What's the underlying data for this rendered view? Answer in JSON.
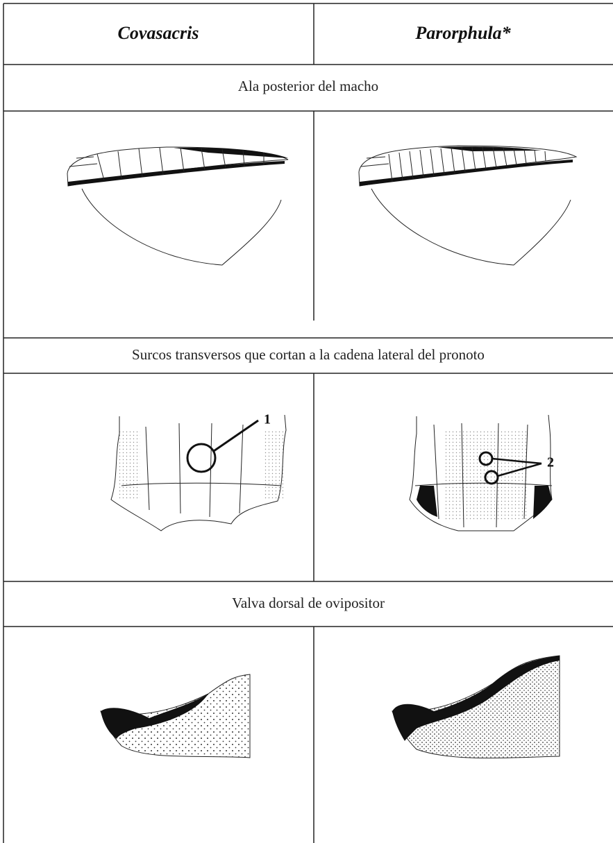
{
  "header": {
    "columns": [
      "Covasacris",
      "Parorphula*"
    ]
  },
  "sections": [
    {
      "title": "Ala posterior del macho"
    },
    {
      "title": "Surcos transversos que cortan a la cadena lateral del pronoto",
      "annotations": [
        "1",
        "2"
      ]
    },
    {
      "title": "Valva dorsal de ovipositor"
    }
  ]
}
